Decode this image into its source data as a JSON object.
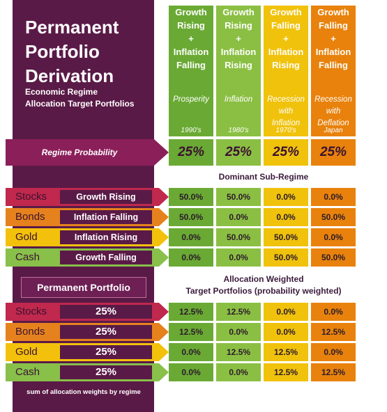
{
  "title": "Permanent\nPortfolio\nDerivation",
  "subtitle": "Economic Regime\nAllocation Target Portfolios",
  "columns": [
    {
      "head": "Growth\nRising\n+\nInflation\nFalling",
      "desc": "Prosperity",
      "era": "1990's",
      "color": "#6aaa34"
    },
    {
      "head": "Growth\nRising\n+\nInflation\nRising",
      "desc": "Inflation",
      "era": "1980's",
      "color": "#8bbf43"
    },
    {
      "head": "Growth\nFalling\n+\nInflation\nRising",
      "desc": "Recession\nwith\nInflation",
      "era": "1970's",
      "color": "#f0c20c"
    },
    {
      "head": "Growth\nFalling\n+\nInflation\nFalling",
      "desc": "Recession\nwith\nDeflation",
      "era": "Japan",
      "color": "#e8820c"
    }
  ],
  "regime": {
    "label": "Regime Probability",
    "values": [
      "25%",
      "25%",
      "25%",
      "25%"
    ]
  },
  "dominant_label": "Dominant Sub-Regime",
  "assets": [
    {
      "name": "Stocks",
      "sub": "Growth Rising",
      "weight": "25%",
      "color": "#c0284d"
    },
    {
      "name": "Bonds",
      "sub": "Inflation Falling",
      "weight": "25%",
      "color": "#e6821e"
    },
    {
      "name": "Gold",
      "sub": "Inflation Rising",
      "weight": "25%",
      "color": "#f3c10c"
    },
    {
      "name": "Cash",
      "sub": "Growth Falling",
      "weight": "25%",
      "color": "#88c04a"
    }
  ],
  "dominant_values": [
    [
      "50.0%",
      "50.0%",
      "0.0%",
      "0.0%"
    ],
    [
      "50.0%",
      "0.0%",
      "0.0%",
      "50.0%"
    ],
    [
      "0.0%",
      "50.0%",
      "50.0%",
      "0.0%"
    ],
    [
      "0.0%",
      "0.0%",
      "50.0%",
      "50.0%"
    ]
  ],
  "permanent_label": "Permanent Portfolio",
  "weighted_label": "Allocation Weighted\nTarget Portfolios (probability weighted)",
  "weighted_values": [
    [
      "12.5%",
      "12.5%",
      "0.0%",
      "0.0%"
    ],
    [
      "12.5%",
      "0.0%",
      "0.0%",
      "12.5%"
    ],
    [
      "0.0%",
      "12.5%",
      "12.5%",
      "0.0%"
    ],
    [
      "0.0%",
      "0.0%",
      "12.5%",
      "12.5%"
    ]
  ],
  "footnote": "sum of allocation weights by regime"
}
